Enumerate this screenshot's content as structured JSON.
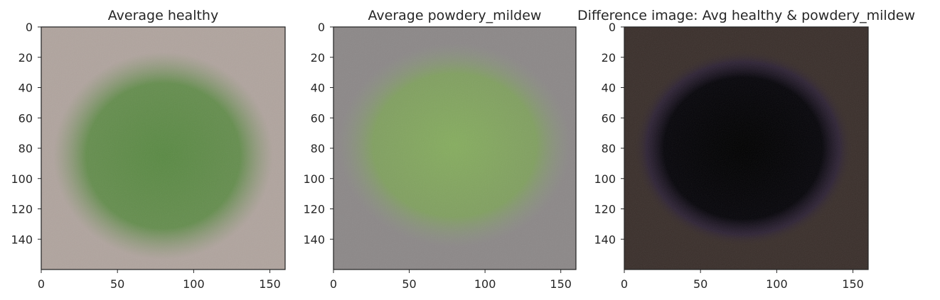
{
  "chart_data": [
    {
      "type": "image",
      "title": "Average healthy",
      "image": "average-healthy-leaf",
      "xlim": [
        0,
        160
      ],
      "ylim": [
        160,
        0
      ],
      "xticks": [
        0,
        50,
        100,
        150
      ],
      "yticks": [
        0,
        20,
        40,
        60,
        80,
        100,
        120,
        140
      ],
      "background_color": "#b0a49e",
      "leaf_color": "#5a8a44",
      "leaf_center": [
        80,
        85
      ],
      "leaf_radius": [
        60,
        57
      ]
    },
    {
      "type": "image",
      "title": "Average powdery_mildew",
      "image": "average-powdery-mildew-leaf",
      "xlim": [
        0,
        160
      ],
      "ylim": [
        160,
        0
      ],
      "xticks": [
        0,
        50,
        100,
        150
      ],
      "yticks": [
        0,
        20,
        40,
        60,
        80,
        100,
        120,
        140
      ],
      "background_color": "#8c8888",
      "leaf_color": "#86ad5f",
      "leaf_center": [
        80,
        78
      ],
      "leaf_radius": [
        64,
        56
      ]
    },
    {
      "type": "image",
      "title": "Difference image: Avg healthy & powdery_mildew",
      "image": "difference-image",
      "xlim": [
        0,
        160
      ],
      "ylim": [
        160,
        0
      ],
      "xticks": [
        0,
        50,
        100,
        150
      ],
      "yticks": [
        0,
        20,
        40,
        60,
        80,
        100,
        120,
        140
      ],
      "background_color": "#3a2f2b",
      "leaf_color": "#000000",
      "leaf_center": [
        78,
        80
      ],
      "leaf_radius": [
        60,
        54
      ]
    }
  ]
}
